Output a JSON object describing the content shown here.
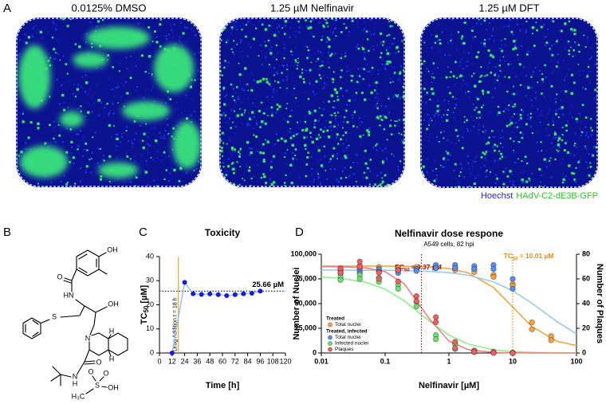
{
  "figure": {
    "panel_labels": [
      "A",
      "B",
      "C",
      "D"
    ]
  },
  "panel_a": {
    "images": [
      {
        "title": "0.0125% DMSO"
      },
      {
        "title": "1.25 µM Nelfinavir"
      },
      {
        "title": "1.25 µM DFT"
      }
    ],
    "legend": [
      {
        "text": "Hoechst",
        "color": "#2222ee"
      },
      {
        "text": "HAdV-C2-dE3B-GFP",
        "color": "#22cc22"
      }
    ]
  },
  "panel_b": {
    "atoms": [
      "OH",
      "O",
      "HN",
      "S",
      "OH",
      "N",
      "H",
      "H",
      "O",
      "N",
      "H",
      "O",
      "O",
      "S",
      "OH",
      "H₃C"
    ]
  },
  "chart_data": [
    {
      "type": "line",
      "title": "Toxicity",
      "xlabel": "Time [h]",
      "ylabel": {
        "main": "TC",
        "sub": "50",
        "unit": "[µM]"
      },
      "x": [
        12,
        24,
        32,
        40,
        48,
        56,
        64,
        72,
        80,
        88,
        96
      ],
      "values": [
        0,
        29.3,
        24.6,
        24.3,
        24.5,
        24.2,
        23.8,
        24.2,
        24.6,
        24.8,
        25.66
      ],
      "color": "#1a1adb",
      "line_color": "#9cc3e6",
      "xlim": [
        0,
        120
      ],
      "xticks": [
        0,
        12,
        24,
        36,
        48,
        60,
        72,
        84,
        96,
        108,
        120
      ],
      "ylim": [
        0,
        40
      ],
      "yticks": [
        0,
        10,
        20,
        30,
        40
      ],
      "event": {
        "x": 18,
        "label": "Drug Addition t = 18 h",
        "color": "#f5a623"
      },
      "reference": {
        "value": 25.66,
        "label": "25.66 µM",
        "color": "#1a1adb"
      }
    },
    {
      "type": "scatter",
      "title": "Nelfinavir dose respone",
      "subtitle": "A549 cells, 82 hpi",
      "xlabel": "Nelfinavir [µM]",
      "ylabel": "Number of Nuclei",
      "y2label": "Number of Plaques",
      "xscale": "log",
      "xlim": [
        0.01,
        100
      ],
      "xticks": [
        0.01,
        0.1,
        1,
        10,
        100
      ],
      "ylim": [
        0,
        100000
      ],
      "yticks": [
        0,
        {
          "value": 25000,
          "label": "25,000"
        },
        {
          "value": 50000,
          "label": "50,000"
        },
        {
          "value": 75000,
          "label": "75,000"
        },
        {
          "value": 100000,
          "label": "100,000"
        }
      ],
      "y2lim": [
        0,
        80
      ],
      "y2ticks": [
        0,
        20,
        40,
        60,
        80
      ],
      "fit_x": [
        0.01,
        0.02,
        0.05,
        0.1,
        0.2,
        0.5,
        1,
        2,
        5,
        10,
        20,
        50,
        100
      ],
      "markers": [
        {
          "prefix": "EC",
          "sub": "50",
          "value": 0.37,
          "label": "= 0.37 µM",
          "color": "#a01010"
        },
        {
          "prefix": "TC",
          "sub": "50",
          "value": 10.01,
          "label": "= 10.01 µM",
          "color": "#f08a10"
        }
      ],
      "legend_groups": [
        {
          "title": "Treated",
          "series": [
            {
              "name": "Total nuclei",
              "color": "#f5a341",
              "fit_color": "#f5a540",
              "x": [
                0.02,
                0.02,
                0.04,
                0.04,
                0.08,
                0.08,
                0.16,
                0.16,
                0.31,
                0.31,
                0.625,
                0.625,
                1.25,
                1.25,
                2.5,
                2.5,
                5,
                5,
                10,
                10,
                20,
                20,
                40,
                40
              ],
              "values": [
                86000,
                84000,
                88000,
                85000,
                87000,
                84000,
                86000,
                83000,
                87000,
                85000,
                88000,
                86000,
                86000,
                84000,
                85000,
                82000,
                79000,
                77000,
                70000,
                68000,
                31000,
                24000,
                17000,
                13000
              ],
              "fit": [
                88000,
                88000,
                87970,
                87920,
                87770,
                87080,
                85460,
                81190,
                66320,
                46500,
                26680,
                11810,
                7540
              ]
            }
          ]
        },
        {
          "title": "Treated, infected",
          "series": [
            {
              "name": "Total nuclei",
              "color": "#5b8def",
              "fit_color": "#9cc8ee",
              "x": [
                0.02,
                0.02,
                0.04,
                0.04,
                0.08,
                0.08,
                0.16,
                0.16,
                0.31,
                0.31,
                0.625,
                0.625,
                1.25,
                1.25,
                2.5,
                2.5,
                5,
                5,
                10,
                10
              ],
              "values": [
                82000,
                80000,
                83000,
                81000,
                85000,
                82000,
                84000,
                81000,
                85000,
                83000,
                89000,
                86000,
                89000,
                86000,
                88000,
                85000,
                89000,
                85000,
                75000,
                65000
              ],
              "fit": [
                83970,
                83940,
                83860,
                83720,
                83440,
                82620,
                81290,
                78750,
                72000,
                63000,
                50400,
                31500,
                19380
              ]
            },
            {
              "name": "Infected nuclei",
              "color": "#6fdd6f",
              "fit_color": "#8fee8f",
              "x": [
                0.02,
                0.02,
                0.04,
                0.04,
                0.08,
                0.08,
                0.16,
                0.16,
                0.31,
                0.31,
                0.625,
                0.625,
                1.25,
                1.25,
                2.5,
                2.5,
                5,
                5,
                10,
                10
              ],
              "values": [
                77000,
                74000,
                79000,
                75000,
                76000,
                72000,
                69000,
                65000,
                52000,
                47000,
                18000,
                14000,
                9000,
                4000,
                2000,
                1000,
                500,
                300,
                300,
                200
              ],
              "fit": [
                76980,
                75710,
                71520,
                64570,
                52770,
                32030,
                18140,
                9090,
                3280,
                1460,
                645,
                216,
                94
              ]
            },
            {
              "name": "Plaques",
              "color": "#f06060",
              "fit_color": "#f08080",
              "axis": "y2",
              "x": [
                0.02,
                0.02,
                0.04,
                0.04,
                0.08,
                0.08,
                0.16,
                0.16,
                0.31,
                0.31,
                0.625,
                0.625,
                1.25,
                1.25,
                2.5,
                2.5,
                5,
                5,
                10,
                10
              ],
              "values": [
                68,
                65,
                74,
                70,
                65,
                60,
                67,
                58,
                46,
                42,
                29,
                25,
                9,
                4,
                2,
                1,
                1,
                0,
                0,
                0
              ],
              "fit": [
                69.96,
                69.83,
                68.92,
                65.88,
                56,
                27.32,
                9.66,
                2.69,
                0.45,
                0.11,
                0.03,
                0,
                0
              ]
            }
          ]
        }
      ]
    }
  ]
}
